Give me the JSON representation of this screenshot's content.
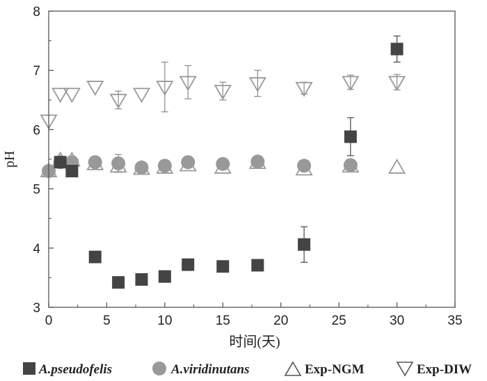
{
  "chart_data": {
    "type": "scatter",
    "title": "",
    "xlabel": "时间(天)",
    "ylabel": "pH",
    "xlim": [
      0,
      35
    ],
    "ylim": [
      3,
      8
    ],
    "xticks": [
      "0",
      "5",
      "10",
      "15",
      "20",
      "25",
      "30",
      "35"
    ],
    "yticks": [
      "3",
      "4",
      "5",
      "6",
      "7",
      "8"
    ],
    "grid": false,
    "legend_position": "bottom",
    "series": [
      {
        "name": "A.pseudofelis",
        "marker": "square",
        "color": "#444444",
        "points": [
          {
            "x": 1,
            "y": 5.45,
            "err": 0
          },
          {
            "x": 2,
            "y": 5.3,
            "err": 0
          },
          {
            "x": 4,
            "y": 3.85,
            "err": 0
          },
          {
            "x": 6,
            "y": 3.42,
            "err": 0
          },
          {
            "x": 8,
            "y": 3.47,
            "err": 0
          },
          {
            "x": 10,
            "y": 3.52,
            "err": 0
          },
          {
            "x": 12,
            "y": 3.72,
            "err": 0
          },
          {
            "x": 15,
            "y": 3.69,
            "err": 0
          },
          {
            "x": 18,
            "y": 3.71,
            "err": 0
          },
          {
            "x": 22,
            "y": 4.06,
            "err": 0.3
          },
          {
            "x": 26,
            "y": 5.88,
            "err": 0.32
          },
          {
            "x": 30,
            "y": 7.36,
            "err": 0.22
          }
        ]
      },
      {
        "name": "A.viridinutans",
        "marker": "circle",
        "color": "#999999",
        "points": [
          {
            "x": 0,
            "y": 5.3,
            "err": 0
          },
          {
            "x": 1,
            "y": 5.45,
            "err": 0
          },
          {
            "x": 2,
            "y": 5.45,
            "err": 0
          },
          {
            "x": 4,
            "y": 5.45,
            "err": 0
          },
          {
            "x": 6,
            "y": 5.43,
            "err": 0.15
          },
          {
            "x": 8,
            "y": 5.36,
            "err": 0
          },
          {
            "x": 10,
            "y": 5.39,
            "err": 0
          },
          {
            "x": 12,
            "y": 5.45,
            "err": 0
          },
          {
            "x": 15,
            "y": 5.42,
            "err": 0
          },
          {
            "x": 18,
            "y": 5.46,
            "err": 0
          },
          {
            "x": 22,
            "y": 5.39,
            "err": 0
          },
          {
            "x": 26,
            "y": 5.4,
            "err": 0
          }
        ]
      },
      {
        "name": "Exp-NGM",
        "marker": "triangle-up",
        "color": "#999999",
        "points": [
          {
            "x": 0,
            "y": 5.3,
            "err": 0
          },
          {
            "x": 1,
            "y": 5.48,
            "err": 0
          },
          {
            "x": 2,
            "y": 5.48,
            "err": 0
          },
          {
            "x": 4,
            "y": 5.42,
            "err": 0
          },
          {
            "x": 6,
            "y": 5.38,
            "err": 0
          },
          {
            "x": 8,
            "y": 5.34,
            "err": 0
          },
          {
            "x": 10,
            "y": 5.36,
            "err": 0
          },
          {
            "x": 12,
            "y": 5.4,
            "err": 0
          },
          {
            "x": 15,
            "y": 5.36,
            "err": 0
          },
          {
            "x": 18,
            "y": 5.44,
            "err": 0
          },
          {
            "x": 22,
            "y": 5.33,
            "err": 0
          },
          {
            "x": 26,
            "y": 5.38,
            "err": 0
          },
          {
            "x": 30,
            "y": 5.36,
            "err": 0
          }
        ]
      },
      {
        "name": "Exp-DIW",
        "marker": "triangle-down",
        "color": "#999999",
        "points": [
          {
            "x": 0,
            "y": 6.15,
            "err": 0
          },
          {
            "x": 1,
            "y": 6.6,
            "err": 0
          },
          {
            "x": 2,
            "y": 6.6,
            "err": 0
          },
          {
            "x": 4,
            "y": 6.72,
            "err": 0
          },
          {
            "x": 6,
            "y": 6.5,
            "err": 0.15
          },
          {
            "x": 8,
            "y": 6.6,
            "err": 0
          },
          {
            "x": 10,
            "y": 6.72,
            "err": 0.42
          },
          {
            "x": 12,
            "y": 6.8,
            "err": 0.28
          },
          {
            "x": 15,
            "y": 6.65,
            "err": 0.15
          },
          {
            "x": 18,
            "y": 6.78,
            "err": 0.22
          },
          {
            "x": 22,
            "y": 6.7,
            "err": 0.1
          },
          {
            "x": 26,
            "y": 6.8,
            "err": 0.12
          },
          {
            "x": 30,
            "y": 6.8,
            "err": 0.13
          }
        ]
      }
    ]
  },
  "legend": {
    "items": [
      {
        "label": "A.pseudofelis",
        "italic": true
      },
      {
        "label": "A.viridinutans",
        "italic": true
      },
      {
        "label": "Exp-NGM",
        "italic": false
      },
      {
        "label": "Exp-DIW",
        "italic": false
      }
    ]
  }
}
